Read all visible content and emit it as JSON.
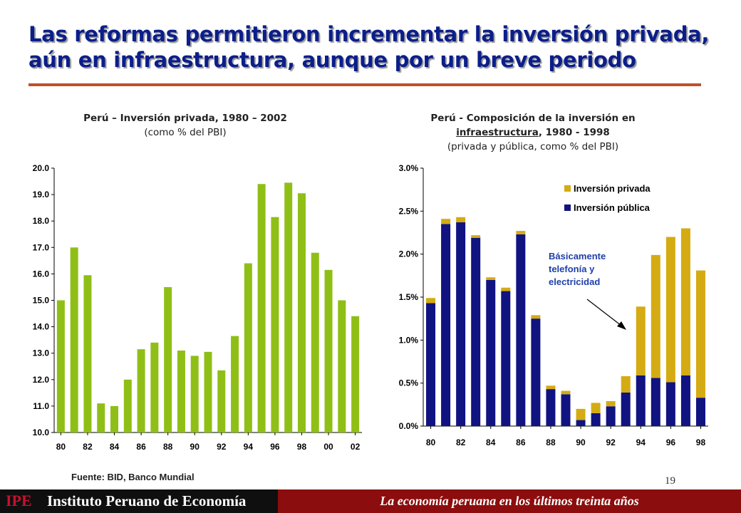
{
  "header": {
    "title_line1": "Las reformas permitieron incrementar la inversión privada,",
    "title_line2": "aún en infraestructura, aunque por un breve periodo"
  },
  "colors": {
    "title": "#0b1e8a",
    "rule": "#c0502a",
    "green_bar": "#8fbf16",
    "private": "#d4ab12",
    "public": "#101380",
    "footer_dark": "#0f0f0f",
    "footer_red": "#8b0d0d"
  },
  "left_chart": {
    "title": "Perú – Inversión privada,  1980 – 2002",
    "subtitle": "(como % del PBI)"
  },
  "right_chart": {
    "title": "Perú - Composición de la inversión en",
    "title2_underlined": "infraestructura",
    "title2_rest": ", 1980 - 1998",
    "subtitle": "(privada y pública, como % del PBI)",
    "annotation": [
      "Básicamente",
      "telefonía y",
      "electricidad"
    ]
  },
  "chart_data": [
    {
      "type": "bar",
      "title": "Perú – Inversión privada,  1980 – 2002",
      "subtitle": "(como % del PBI)",
      "color": "#8fbf16",
      "ylim": [
        10,
        20
      ],
      "yticks": [
        "10.0",
        "11.0",
        "12.0",
        "13.0",
        "14.0",
        "15.0",
        "16.0",
        "17.0",
        "18.0",
        "19.0",
        "20.0"
      ],
      "xtick_labels": [
        "80",
        "82",
        "84",
        "86",
        "88",
        "90",
        "92",
        "94",
        "96",
        "98",
        "00",
        "02"
      ],
      "categories": [
        "1980",
        "1981",
        "1982",
        "1983",
        "1984",
        "1985",
        "1986",
        "1987",
        "1988",
        "1989",
        "1990",
        "1991",
        "1992",
        "1993",
        "1994",
        "1995",
        "1996",
        "1997",
        "1998",
        "1999",
        "2000",
        "2001",
        "2002"
      ],
      "values": [
        15.0,
        17.0,
        15.95,
        11.1,
        11.0,
        12.0,
        13.15,
        13.4,
        15.5,
        13.1,
        12.9,
        13.05,
        12.35,
        13.65,
        16.4,
        19.4,
        18.15,
        19.45,
        19.05,
        16.8,
        16.15,
        15.0,
        14.4
      ],
      "grid": false,
      "source": "Fuente: BID, Banco Mundial"
    },
    {
      "type": "bar",
      "stacked": true,
      "title": "Perú - Composición de la inversión en infraestructura, 1980 - 1998",
      "subtitle": "(privada y pública, como % del PBI)",
      "ylim": [
        0,
        3.0
      ],
      "yticks": [
        "0.0%",
        "0.5%",
        "1.0%",
        "1.5%",
        "2.0%",
        "2.5%",
        "3.0%"
      ],
      "xtick_labels": [
        "80",
        "82",
        "84",
        "86",
        "88",
        "90",
        "92",
        "94",
        "96",
        "98"
      ],
      "categories": [
        "1980",
        "1981",
        "1982",
        "1983",
        "1984",
        "1985",
        "1986",
        "1987",
        "1988",
        "1989",
        "1990",
        "1991",
        "1992",
        "1993",
        "1994",
        "1995",
        "1996",
        "1997",
        "1998"
      ],
      "series": [
        {
          "name": "Inversión pública",
          "color": "#101380",
          "values": [
            1.43,
            2.35,
            2.37,
            2.19,
            1.7,
            1.57,
            2.23,
            1.25,
            0.43,
            0.37,
            0.07,
            0.15,
            0.23,
            0.39,
            0.59,
            0.56,
            0.51,
            0.59,
            0.33
          ]
        },
        {
          "name": "Inversión privada",
          "color": "#d4ab12",
          "values": [
            0.06,
            0.06,
            0.06,
            0.03,
            0.03,
            0.04,
            0.04,
            0.04,
            0.04,
            0.04,
            0.13,
            0.12,
            0.06,
            0.19,
            0.8,
            1.43,
            1.69,
            1.71,
            1.48
          ]
        }
      ],
      "legend": "top-right",
      "annotation": "Básicamente telefonía y electricidad",
      "grid": false
    }
  ],
  "source": "Fuente: BID, Banco Mundial",
  "page_number": "19",
  "footer": {
    "brand_abbr": "IPE",
    "brand_name": "Instituto Peruano de Economía",
    "tagline": "La economía peruana en los últimos treinta años"
  }
}
